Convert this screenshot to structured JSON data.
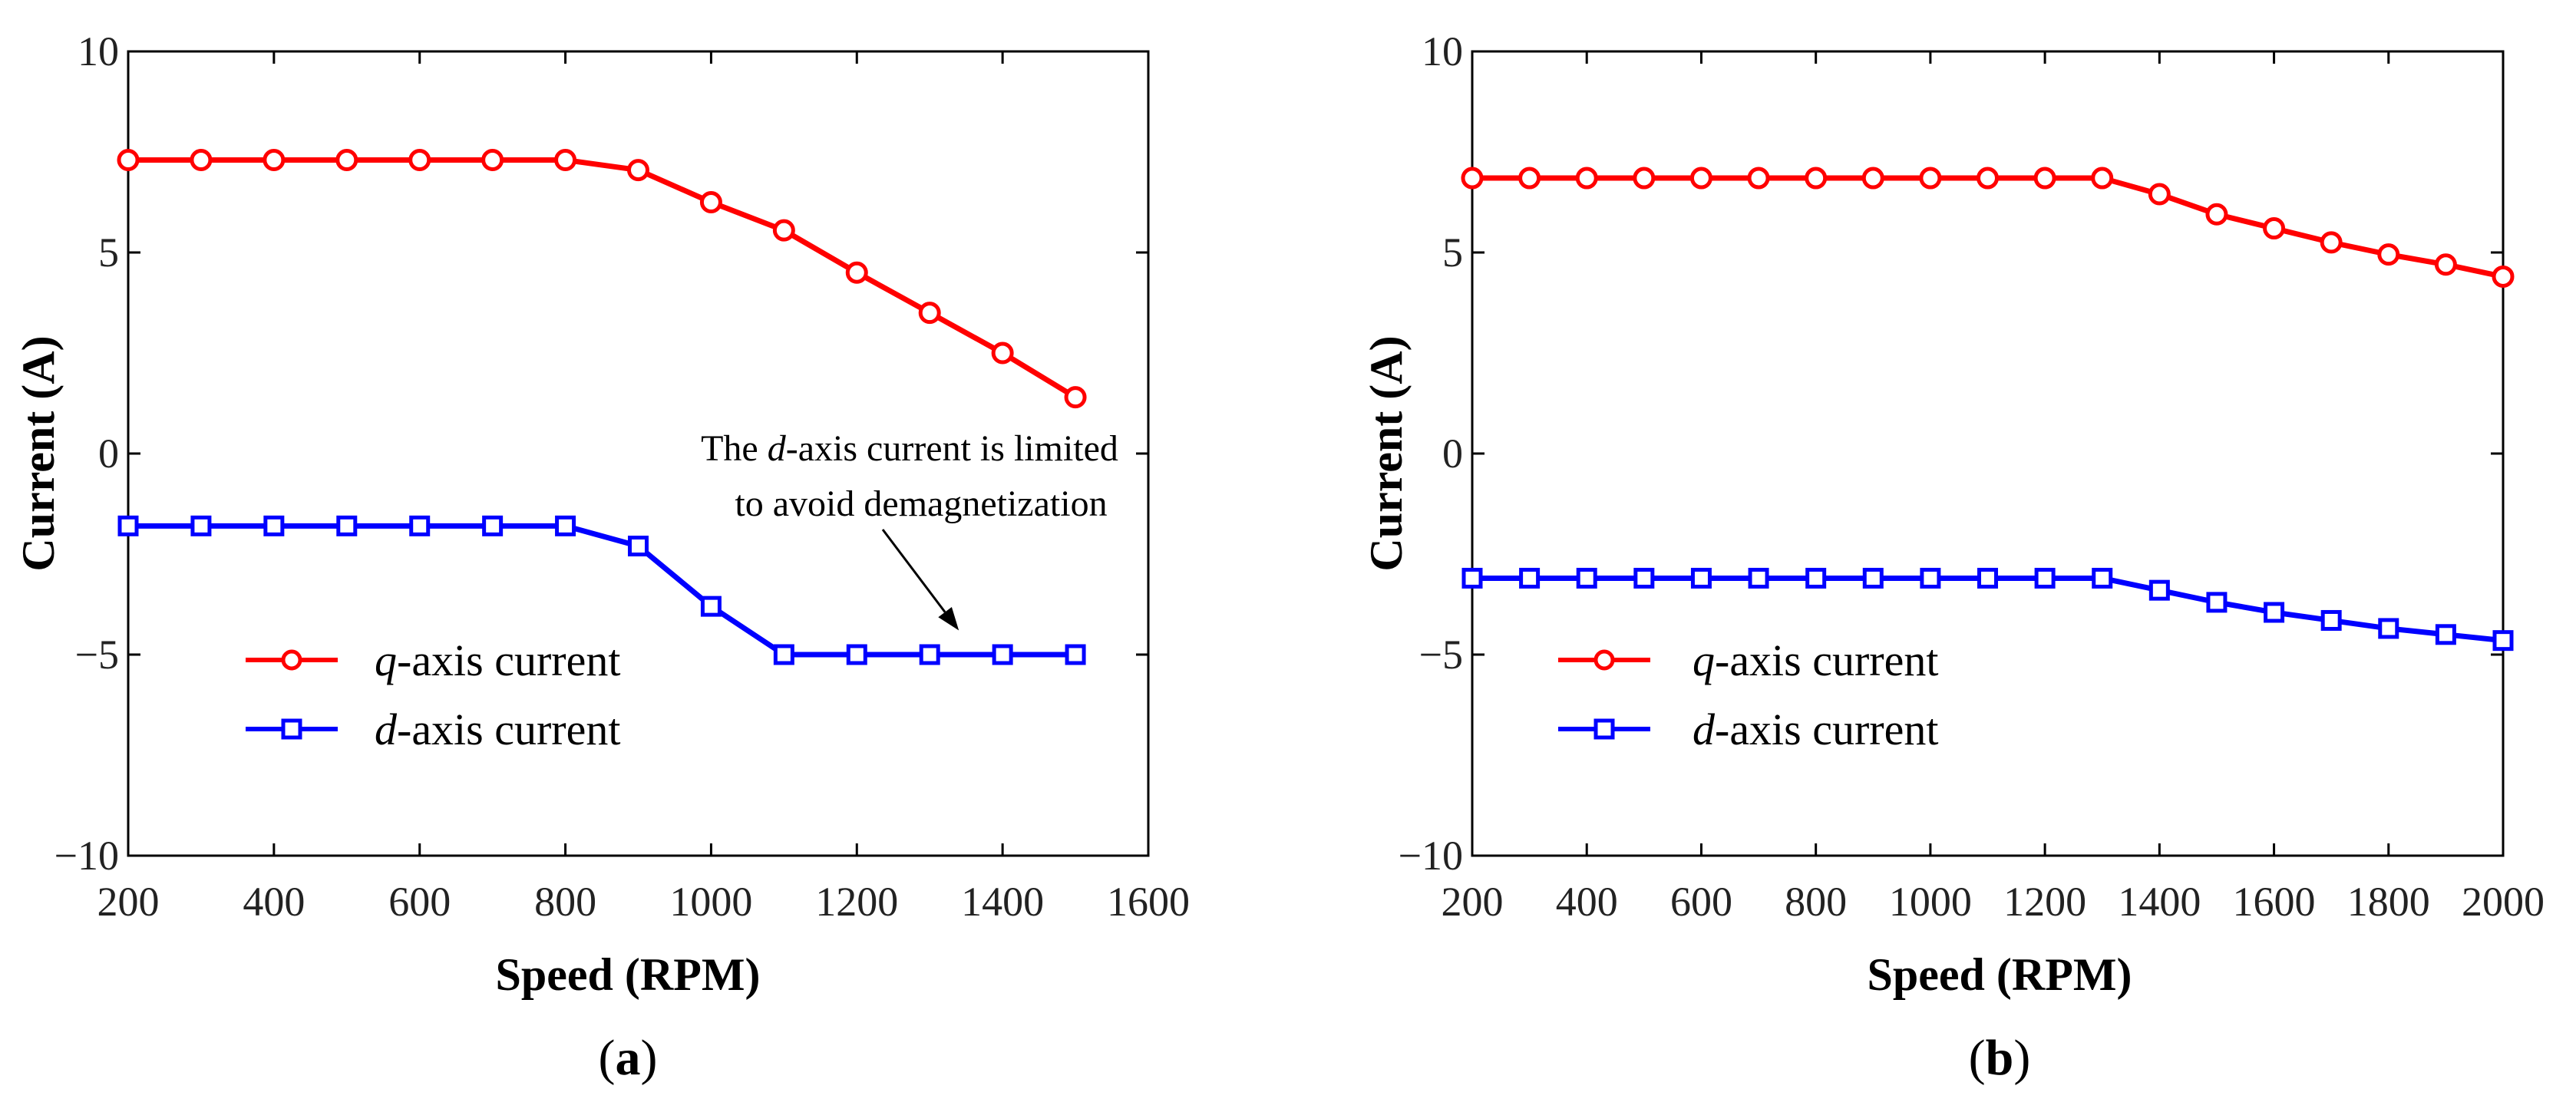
{
  "colors": {
    "q_series": "#ff0000",
    "d_series": "#0000ff",
    "axis": "#000000"
  },
  "chart_data": [
    {
      "panel_label": "a",
      "type": "line",
      "xlabel": "Speed (RPM)",
      "ylabel": "Current (A)",
      "xlim": [
        200,
        1600
      ],
      "ylim": [
        -10,
        10
      ],
      "xticks": [
        200,
        400,
        600,
        800,
        1000,
        1200,
        1400,
        1600
      ],
      "yticks": [
        10,
        5,
        0,
        -5,
        -10
      ],
      "ytick_labels": [
        "10",
        "5",
        "0",
        "−5",
        "−10"
      ],
      "x": [
        200,
        300,
        400,
        500,
        600,
        700,
        800,
        900,
        1000,
        1100,
        1200,
        1300,
        1400,
        1500
      ],
      "series": [
        {
          "name": "q-axis current",
          "legend_var": "q",
          "legend_rest": "-axis current",
          "color": "#ff0000",
          "marker": "circle",
          "values": [
            7.3,
            7.3,
            7.3,
            7.3,
            7.3,
            7.3,
            7.3,
            7.05,
            6.25,
            5.55,
            4.5,
            3.5,
            2.5,
            1.4
          ]
        },
        {
          "name": "d-axis current",
          "legend_var": "d",
          "legend_rest": "-axis current",
          "color": "#0000ff",
          "marker": "square",
          "values": [
            -1.8,
            -1.8,
            -1.8,
            -1.8,
            -1.8,
            -1.8,
            -1.8,
            -2.3,
            -3.8,
            -5.0,
            -5.0,
            -5.0,
            -5.0,
            -5.0
          ]
        }
      ],
      "legend_position": "lower-left",
      "annotation": {
        "line1_prefix": "The ",
        "line1_var": "d",
        "line1_suffix": "-axis current is limited",
        "line2": "to avoid demagnetization",
        "arrow_target": [
          1340,
          -4.4
        ]
      }
    },
    {
      "panel_label": "b",
      "type": "line",
      "xlabel": "Speed (RPM)",
      "ylabel": "Current (A)",
      "xlim": [
        200,
        2000
      ],
      "ylim": [
        -10,
        10
      ],
      "xticks": [
        200,
        400,
        600,
        800,
        1000,
        1200,
        1400,
        1600,
        1800,
        2000
      ],
      "yticks": [
        10,
        5,
        0,
        -5,
        -10
      ],
      "ytick_labels": [
        "10",
        "5",
        "0",
        "−5",
        "−10"
      ],
      "x": [
        200,
        300,
        400,
        500,
        600,
        700,
        800,
        900,
        1000,
        1100,
        1200,
        1300,
        1400,
        1500,
        1600,
        1700,
        1800,
        1900,
        2000
      ],
      "series": [
        {
          "name": "q-axis current",
          "legend_var": "q",
          "legend_rest": "-axis current",
          "color": "#ff0000",
          "marker": "circle",
          "values": [
            6.85,
            6.85,
            6.85,
            6.85,
            6.85,
            6.85,
            6.85,
            6.85,
            6.85,
            6.85,
            6.85,
            6.85,
            6.45,
            5.95,
            5.6,
            5.25,
            4.95,
            4.7,
            4.4
          ]
        },
        {
          "name": "d-axis current",
          "legend_var": "d",
          "legend_rest": "-axis current",
          "color": "#0000ff",
          "marker": "square",
          "values": [
            -3.1,
            -3.1,
            -3.1,
            -3.1,
            -3.1,
            -3.1,
            -3.1,
            -3.1,
            -3.1,
            -3.1,
            -3.1,
            -3.1,
            -3.4,
            -3.7,
            -3.95,
            -4.15,
            -4.35,
            -4.5,
            -4.65
          ]
        }
      ],
      "legend_position": "lower-left"
    }
  ]
}
